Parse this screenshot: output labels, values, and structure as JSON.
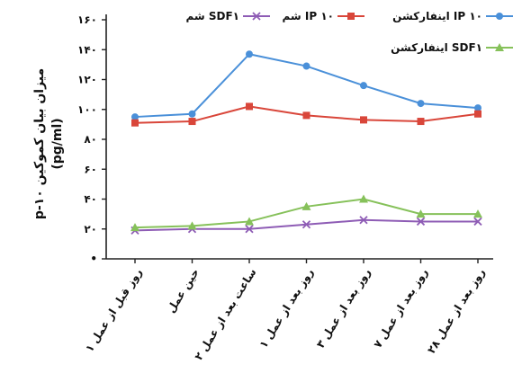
{
  "chart_data": {
    "type": "line",
    "ylabel": "p-۱۰ میزان بیان کموکین",
    "yunit": "(pg/ml)",
    "ylim": [
      0,
      160
    ],
    "yticks": [
      0,
      20,
      40,
      60,
      80,
      100,
      120,
      140,
      160
    ],
    "ytick_labels": [
      "•",
      "۲۰",
      "۴۰",
      "۶۰",
      "۸۰",
      "۱۰۰",
      "۱۲۰",
      "۱۴۰",
      "۱۶۰"
    ],
    "categories": [
      "۱ روز قبل از عمل",
      "حین عمل",
      "۲ ساعت بعد از عمل",
      "۱ روز بعد از عمل",
      "۳ روز بعد از عمل",
      "۷ روز بعد از عمل",
      "۲۸ روز بعد از عمل"
    ],
    "series": [
      {
        "name": "اینفارکشن IP ۱۰",
        "color": "#4a90d9",
        "marker": "circle",
        "values": [
          95,
          97,
          137,
          129,
          116,
          104,
          101
        ]
      },
      {
        "name": "شم IP ۱۰",
        "color": "#d9463a",
        "marker": "square",
        "values": [
          91,
          92,
          102,
          96,
          93,
          92,
          97
        ]
      },
      {
        "name": "شم SDF۱",
        "color": "#8e5cb5",
        "marker": "x",
        "values": [
          19,
          20,
          20,
          23,
          26,
          25,
          25
        ]
      },
      {
        "name": "اینفارکشن SDF۱",
        "color": "#86c15a",
        "marker": "triangle",
        "values": [
          21,
          22,
          25,
          35,
          40,
          30,
          30
        ]
      }
    ],
    "legend": "top"
  }
}
